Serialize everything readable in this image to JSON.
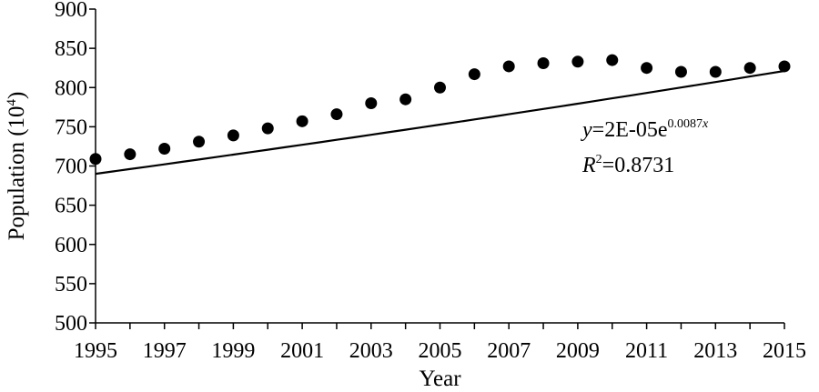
{
  "chart_data": {
    "type": "scatter",
    "title": "",
    "xlabel": "Year",
    "ylabel_text": "Population (10",
    "ylabel_exp": "4",
    "ylabel_close": ")",
    "xlim": [
      1995,
      2015
    ],
    "ylim": [
      500,
      900
    ],
    "x_ticks": [
      1995,
      1997,
      1999,
      2001,
      2003,
      2005,
      2007,
      2009,
      2011,
      2013,
      2015
    ],
    "y_ticks": [
      500,
      550,
      600,
      650,
      700,
      750,
      800,
      850,
      900
    ],
    "grid": false,
    "points": {
      "x": [
        1995,
        1996,
        1997,
        1998,
        1999,
        2000,
        2001,
        2002,
        2003,
        2004,
        2005,
        2006,
        2007,
        2008,
        2009,
        2010,
        2011,
        2012,
        2013,
        2014,
        2015
      ],
      "y": [
        709,
        715,
        722,
        731,
        739,
        748,
        757,
        766,
        780,
        785,
        800,
        817,
        827,
        831,
        833,
        835,
        825,
        820,
        820,
        825,
        827
      ]
    },
    "trendline": {
      "type": "exponential",
      "coef": 2e-05,
      "rate": 0.0087,
      "color": "#000000"
    },
    "annotation": {
      "eq_y": "y",
      "eq_body": "=2E-05e",
      "eq_exp_num": "0.0087",
      "eq_exp_var": "x",
      "r_var": "R",
      "r_sup": "2",
      "r_val": "=0.8731"
    },
    "marker_color": "#000000"
  }
}
